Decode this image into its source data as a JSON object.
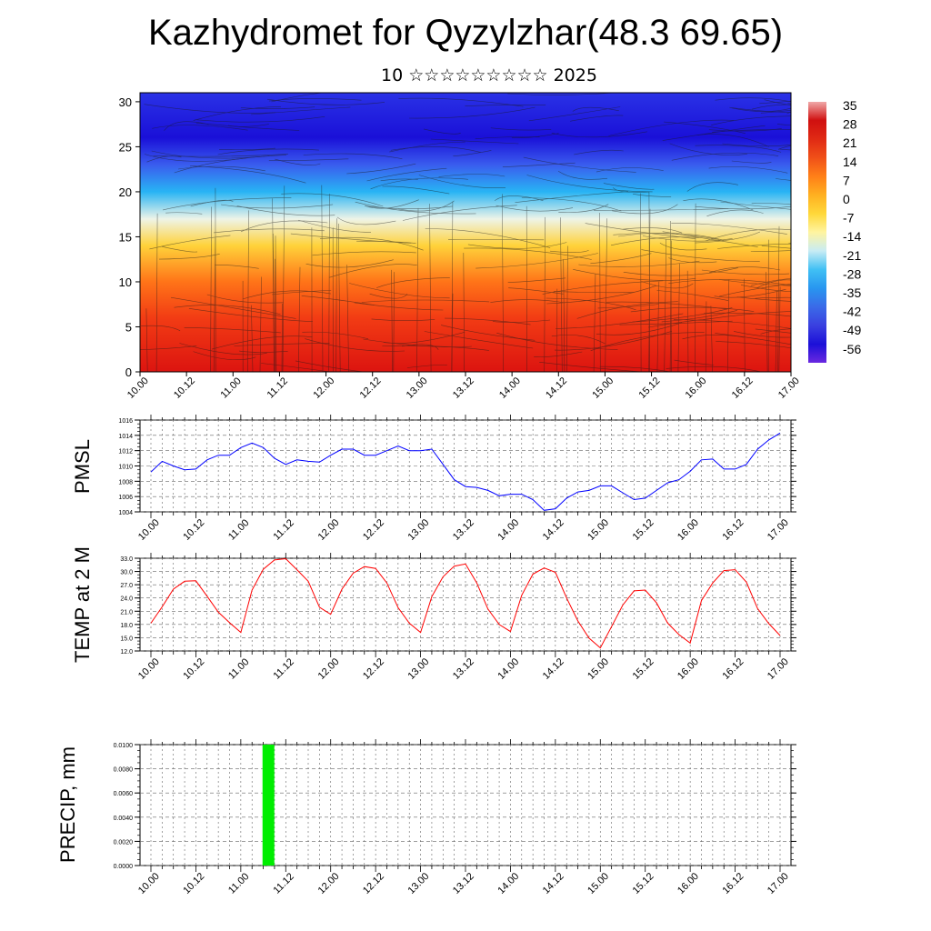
{
  "page": {
    "title": "Kazhydromet for Qyzylzhar(48.3 69.65)",
    "subtitle": "10 ☆☆☆☆☆☆☆☆☆ 2025"
  },
  "chart_data": [
    {
      "type": "heatmap",
      "title": "",
      "xlabel": "",
      "ylabel": "",
      "x_ticks": [
        "10.00",
        "10.12",
        "11.00",
        "11.12",
        "12.00",
        "12.12",
        "13.00",
        "13.12",
        "14.00",
        "14.12",
        "15.00",
        "15.12",
        "16.00",
        "16.12",
        "17.00"
      ],
      "y_ticks": [
        "0",
        "5",
        "10",
        "15",
        "20",
        "25",
        "30"
      ],
      "ylim": [
        0,
        31
      ],
      "colorbar_labels": [
        "35",
        "28",
        "21",
        "14",
        "7",
        "0",
        "-7",
        "-14",
        "-21",
        "-28",
        "-35",
        "-42",
        "-49",
        "-56"
      ],
      "colors": {
        "warm": "#e0101a",
        "mid": "#ffd040",
        "cold": "#1018d8"
      },
      "temperature_profile": [
        {
          "level": 0,
          "value": 28
        },
        {
          "level": 6,
          "value": 20
        },
        {
          "level": 10,
          "value": 12
        },
        {
          "level": 14,
          "value": -2
        },
        {
          "level": 17,
          "value": -12
        },
        {
          "level": 20,
          "value": -28
        },
        {
          "level": 23,
          "value": -45
        },
        {
          "level": 26,
          "value": -56
        },
        {
          "level": 31,
          "value": -50
        }
      ]
    },
    {
      "type": "line",
      "ylabel": "PMSL",
      "ylim": [
        1004,
        1016
      ],
      "y_ticks": [
        "1004",
        "1006",
        "1008",
        "1010",
        "1012",
        "1014",
        "1016"
      ],
      "x_ticks": [
        "10.00",
        "10.12",
        "11.00",
        "11.12",
        "12.00",
        "12.12",
        "13.00",
        "13.12",
        "14.00",
        "14.12",
        "15.00",
        "15.12",
        "16.00",
        "16.12",
        "17.00"
      ],
      "series": [
        {
          "color": "#0000ff",
          "values": [
            1009.2,
            1010.6,
            1010.0,
            1009.5,
            1009.6,
            1010.8,
            1011.4,
            1011.4,
            1012.4,
            1013.0,
            1012.4,
            1011.0,
            1010.2,
            1010.8,
            1010.6,
            1010.5,
            1011.4,
            1012.2,
            1012.2,
            1011.4,
            1011.4,
            1012.0,
            1012.6,
            1012.0,
            1012.0,
            1012.2,
            1010.2,
            1008.2,
            1007.3,
            1007.2,
            1006.8,
            1006.1,
            1006.3,
            1006.3,
            1005.6,
            1004.2,
            1004.4,
            1005.8,
            1006.6,
            1006.8,
            1007.4,
            1007.4,
            1006.5,
            1005.6,
            1005.8,
            1006.8,
            1007.8,
            1008.2,
            1009.3,
            1010.8,
            1010.9,
            1009.6,
            1009.6,
            1010.2,
            1012.2,
            1013.4,
            1014.3
          ]
        }
      ]
    },
    {
      "type": "line",
      "ylabel": "TEMP at 2 M",
      "ylim": [
        12,
        33
      ],
      "y_ticks": [
        "12.0",
        "15.0",
        "18.0",
        "21.0",
        "24.0",
        "27.0",
        "30.0",
        "33.0"
      ],
      "x_ticks": [
        "10.00",
        "10.12",
        "11.00",
        "11.12",
        "12.00",
        "12.12",
        "13.00",
        "13.12",
        "14.00",
        "14.12",
        "15.00",
        "15.12",
        "16.00",
        "16.12",
        "17.00"
      ],
      "series": [
        {
          "color": "#ff0000",
          "values": [
            18.3,
            22.0,
            26.0,
            27.8,
            27.9,
            24.4,
            20.8,
            18.4,
            16.2,
            25.8,
            30.5,
            32.6,
            32.9,
            30.4,
            27.8,
            21.9,
            20.3,
            26.0,
            29.6,
            31.1,
            30.7,
            27.4,
            21.8,
            18.3,
            16.2,
            24.3,
            28.8,
            31.2,
            31.7,
            27.4,
            21.5,
            18.0,
            16.4,
            24.6,
            29.4,
            30.8,
            29.8,
            24.0,
            18.8,
            14.9,
            12.7,
            17.5,
            22.4,
            25.6,
            25.8,
            22.9,
            18.3,
            15.7,
            13.8,
            23.4,
            27.4,
            30.2,
            30.4,
            27.6,
            21.6,
            18.2,
            15.5
          ]
        }
      ]
    },
    {
      "type": "bar",
      "ylabel": "PRECIP, mm",
      "ylim": [
        0,
        0.01
      ],
      "y_ticks": [
        "0.0000",
        "0.0020",
        "0.0040",
        "0.0060",
        "0.0080",
        "0.0100"
      ],
      "x_ticks": [
        "10.00",
        "10.12",
        "11.00",
        "11.12",
        "12.00",
        "12.12",
        "13.00",
        "13.12",
        "14.00",
        "14.12",
        "15.00",
        "15.12",
        "16.00",
        "16.12",
        "17.00"
      ],
      "bars": [
        {
          "x_index": 10.5,
          "value": 0.01,
          "color": "#00ee00"
        }
      ]
    }
  ]
}
